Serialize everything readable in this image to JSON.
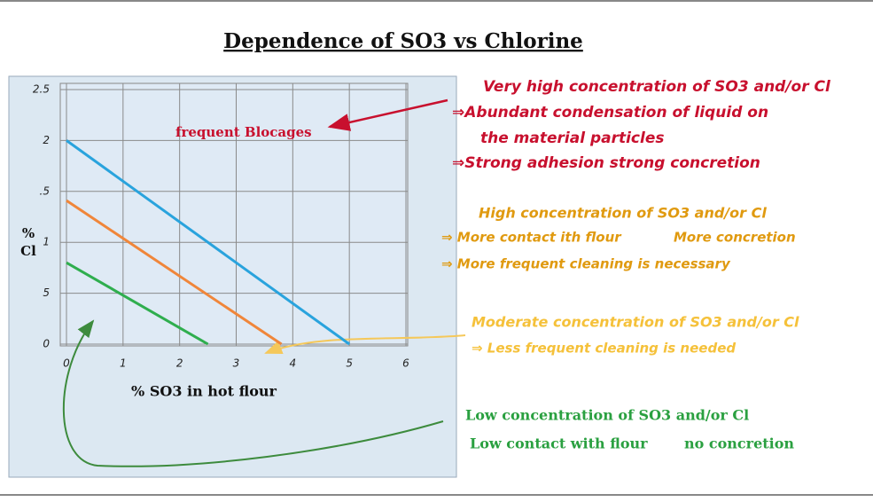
{
  "chart_data": {
    "type": "line",
    "title": "Dependence of SO3 vs Chlorine",
    "xlabel": "% SO3 in hot flour",
    "ylabel": [
      "%",
      "Cl"
    ],
    "xlim": [
      0,
      6
    ],
    "xticks": [
      0,
      1,
      2,
      3,
      4,
      5,
      6
    ],
    "ylim": [
      0,
      2.5
    ],
    "yticks": [
      0,
      {
        "value": 0.5,
        "label": "5"
      },
      1,
      {
        "value": 1.5,
        "label": ".5"
      },
      2,
      2.5
    ],
    "grid": true,
    "series": [
      {
        "color": "#29a3dd",
        "x": [
          0,
          5
        ],
        "values": [
          2,
          0
        ]
      },
      {
        "color": "#f0863a",
        "x": [
          0,
          3.8
        ],
        "values": [
          1.41,
          0
        ]
      },
      {
        "color": "#2fae4e",
        "x": [
          0,
          2.5
        ],
        "values": [
          0.8,
          0
        ]
      }
    ],
    "annotations": [
      "frequent Blocages",
      "Very high concentration of SO3 and/or Cl",
      "⇒Abundant condensation of liquid on",
      "the material particles",
      "⇒Strong adhesion strong concretion",
      "High concentration of SO3 and/or Cl",
      "⇒ More contact ith flour",
      "More concretion",
      "⇒ More frequent cleaning is necessary",
      "Moderate concentration of SO3 and/or Cl",
      "⇒ Less frequent cleaning is needed",
      "Low concentration of SO3 and/or Cl",
      "Low contact with flour",
      "no concretion"
    ]
  }
}
